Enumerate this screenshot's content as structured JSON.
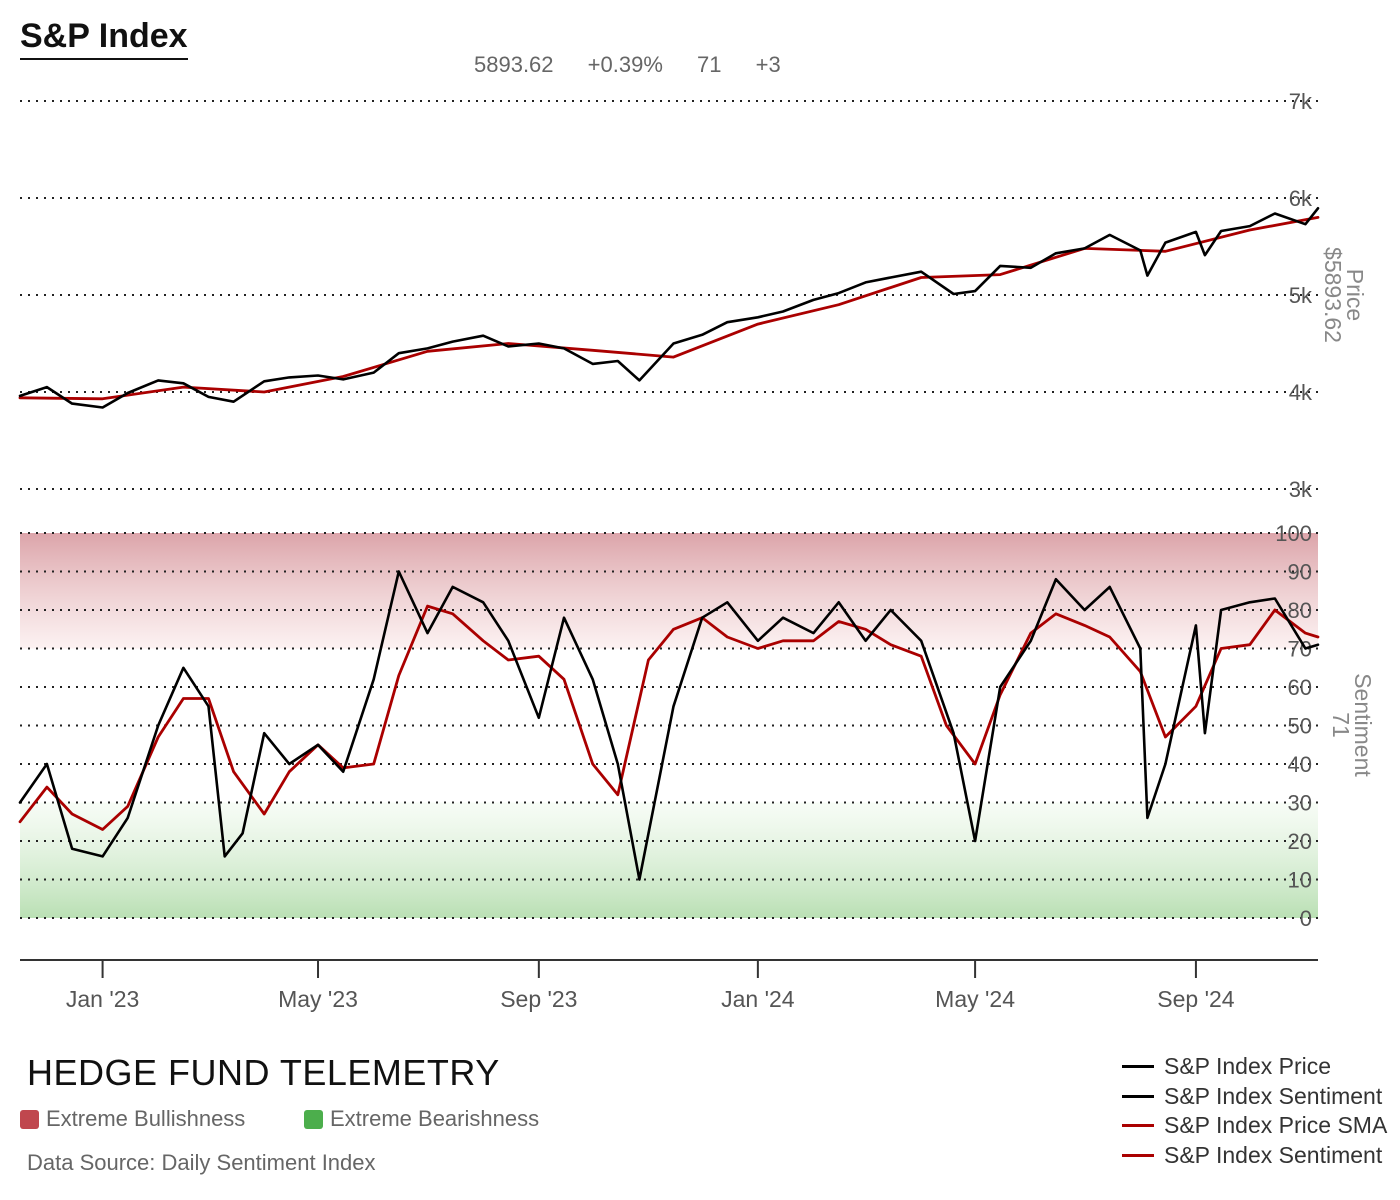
{
  "title": "S&P Index",
  "stats": {
    "price": "5893.62",
    "price_change": "+0.39%",
    "sentiment": "71",
    "sentiment_change": "+3"
  },
  "brand": "HEDGE FUND TELEMETRY",
  "keys": {
    "bull": "Extreme Bullishness",
    "bear": "Extreme Bearishness"
  },
  "source": "Data Source: Daily Sentiment Index",
  "colors": {
    "price_line": "#000000",
    "sma_line": "#aa0000",
    "bull_zone": "#c0474e",
    "bear_zone": "#4cae4c"
  },
  "legend": [
    {
      "label": "S&P Index Price",
      "color": "#000000"
    },
    {
      "label": "S&P Index Sentiment",
      "color": "#000000"
    },
    {
      "label": "S&P Index Price SMA",
      "color": "#aa0000"
    },
    {
      "label": "S&P Index Sentiment",
      "color": "#aa0000"
    }
  ],
  "chart_data": {
    "type": "line",
    "x_ticks": [
      "Jan '23",
      "May '23",
      "Sep '23",
      "Jan '24",
      "May '24",
      "Sep '24"
    ],
    "x_tick_dates": [
      "2023-01-01",
      "2023-05-01",
      "2023-09-01",
      "2024-01-01",
      "2024-05-01",
      "2024-09-01"
    ],
    "x_range": [
      "2022-11-16",
      "2024-11-08"
    ],
    "price_axis": {
      "label": "Price",
      "value_label": "$5893.62",
      "ticks": [
        "3k",
        "4k",
        "5k",
        "6k",
        "7k"
      ],
      "tick_values": [
        3000,
        4000,
        5000,
        6000,
        7000
      ],
      "ylim": [
        3000,
        7000
      ]
    },
    "sentiment_axis": {
      "label": "Sentiment",
      "value_label": "71",
      "ticks": [
        "0",
        "10",
        "20",
        "30",
        "40",
        "50",
        "60",
        "70",
        "80",
        "90",
        "100"
      ],
      "tick_values": [
        0,
        10,
        20,
        30,
        40,
        50,
        60,
        70,
        80,
        90,
        100
      ],
      "ylim": [
        0,
        100
      ]
    },
    "series": [
      {
        "name": "S&P Index Price",
        "panel": "price",
        "x": [
          "2022-11-16",
          "2022-12-01",
          "2022-12-15",
          "2023-01-01",
          "2023-01-15",
          "2023-02-01",
          "2023-02-15",
          "2023-03-01",
          "2023-03-15",
          "2023-04-01",
          "2023-04-15",
          "2023-05-01",
          "2023-05-15",
          "2023-06-01",
          "2023-06-15",
          "2023-07-01",
          "2023-07-15",
          "2023-08-01",
          "2023-08-15",
          "2023-09-01",
          "2023-09-15",
          "2023-10-01",
          "2023-10-15",
          "2023-10-27",
          "2023-11-15",
          "2023-12-01",
          "2023-12-15",
          "2024-01-01",
          "2024-01-15",
          "2024-02-01",
          "2024-02-15",
          "2024-03-01",
          "2024-03-15",
          "2024-04-01",
          "2024-04-19",
          "2024-05-01",
          "2024-05-15",
          "2024-06-01",
          "2024-06-15",
          "2024-07-01",
          "2024-07-15",
          "2024-08-01",
          "2024-08-05",
          "2024-08-15",
          "2024-09-01",
          "2024-09-06",
          "2024-09-15",
          "2024-10-01",
          "2024-10-15",
          "2024-11-01",
          "2024-11-08"
        ],
        "values": [
          3960,
          4050,
          3880,
          3840,
          3990,
          4120,
          4090,
          3950,
          3900,
          4110,
          4150,
          4170,
          4130,
          4200,
          4400,
          4450,
          4520,
          4580,
          4470,
          4500,
          4450,
          4290,
          4320,
          4120,
          4500,
          4590,
          4720,
          4770,
          4830,
          4950,
          5020,
          5130,
          5180,
          5240,
          5010,
          5040,
          5300,
          5280,
          5430,
          5480,
          5620,
          5460,
          5200,
          5540,
          5650,
          5410,
          5660,
          5710,
          5840,
          5730,
          5893.62
        ]
      },
      {
        "name": "S&P Index Price SMA",
        "panel": "price",
        "x": [
          "2022-11-16",
          "2023-01-01",
          "2023-02-15",
          "2023-04-01",
          "2023-05-15",
          "2023-07-01",
          "2023-08-15",
          "2023-10-01",
          "2023-11-15",
          "2024-01-01",
          "2024-02-15",
          "2024-04-01",
          "2024-05-15",
          "2024-07-01",
          "2024-08-15",
          "2024-10-01",
          "2024-11-08"
        ],
        "values": [
          3940,
          3930,
          4050,
          4000,
          4160,
          4420,
          4500,
          4430,
          4360,
          4700,
          4900,
          5180,
          5210,
          5480,
          5450,
          5670,
          5800
        ]
      },
      {
        "name": "S&P Index Sentiment",
        "panel": "sentiment",
        "x": [
          "2022-11-16",
          "2022-12-01",
          "2022-12-15",
          "2023-01-01",
          "2023-01-15",
          "2023-02-01",
          "2023-02-15",
          "2023-03-01",
          "2023-03-10",
          "2023-03-20",
          "2023-04-01",
          "2023-04-15",
          "2023-05-01",
          "2023-05-15",
          "2023-06-01",
          "2023-06-15",
          "2023-07-01",
          "2023-07-15",
          "2023-08-01",
          "2023-08-15",
          "2023-09-01",
          "2023-09-15",
          "2023-10-01",
          "2023-10-15",
          "2023-10-27",
          "2023-11-15",
          "2023-12-01",
          "2023-12-15",
          "2024-01-01",
          "2024-01-15",
          "2024-02-01",
          "2024-02-15",
          "2024-03-01",
          "2024-03-15",
          "2024-04-01",
          "2024-04-19",
          "2024-05-01",
          "2024-05-15",
          "2024-06-01",
          "2024-06-15",
          "2024-07-01",
          "2024-07-15",
          "2024-08-01",
          "2024-08-05",
          "2024-08-15",
          "2024-09-01",
          "2024-09-06",
          "2024-09-15",
          "2024-10-01",
          "2024-10-15",
          "2024-11-01",
          "2024-11-08"
        ],
        "values": [
          30,
          40,
          18,
          16,
          26,
          50,
          65,
          55,
          16,
          22,
          48,
          40,
          45,
          38,
          62,
          90,
          74,
          86,
          82,
          72,
          52,
          78,
          62,
          40,
          10,
          55,
          78,
          82,
          72,
          78,
          74,
          82,
          72,
          80,
          72,
          48,
          20,
          60,
          72,
          88,
          80,
          86,
          70,
          26,
          40,
          76,
          48,
          80,
          82,
          83,
          70,
          71
        ]
      },
      {
        "name": "S&P Index Sentiment",
        "panel": "sentiment",
        "x": [
          "2022-11-16",
          "2022-12-01",
          "2022-12-15",
          "2023-01-01",
          "2023-01-15",
          "2023-02-01",
          "2023-02-15",
          "2023-03-01",
          "2023-03-15",
          "2023-04-01",
          "2023-04-15",
          "2023-05-01",
          "2023-05-15",
          "2023-06-01",
          "2023-06-15",
          "2023-07-01",
          "2023-07-15",
          "2023-08-01",
          "2023-08-15",
          "2023-09-01",
          "2023-09-15",
          "2023-10-01",
          "2023-10-15",
          "2023-11-01",
          "2023-11-15",
          "2023-12-01",
          "2023-12-15",
          "2024-01-01",
          "2024-01-15",
          "2024-02-01",
          "2024-02-15",
          "2024-03-01",
          "2024-03-15",
          "2024-04-01",
          "2024-04-15",
          "2024-05-01",
          "2024-05-15",
          "2024-06-01",
          "2024-06-15",
          "2024-07-01",
          "2024-07-15",
          "2024-08-01",
          "2024-08-15",
          "2024-09-01",
          "2024-09-15",
          "2024-10-01",
          "2024-10-15",
          "2024-11-01",
          "2024-11-08"
        ],
        "values": [
          25,
          34,
          27,
          23,
          29,
          47,
          57,
          57,
          38,
          27,
          38,
          45,
          39,
          40,
          63,
          81,
          79,
          72,
          67,
          68,
          62,
          40,
          32,
          67,
          75,
          78,
          73,
          70,
          72,
          72,
          77,
          75,
          71,
          68,
          50,
          40,
          58,
          74,
          79,
          76,
          73,
          64,
          47,
          55,
          70,
          71,
          80,
          74,
          73
        ]
      }
    ]
  }
}
